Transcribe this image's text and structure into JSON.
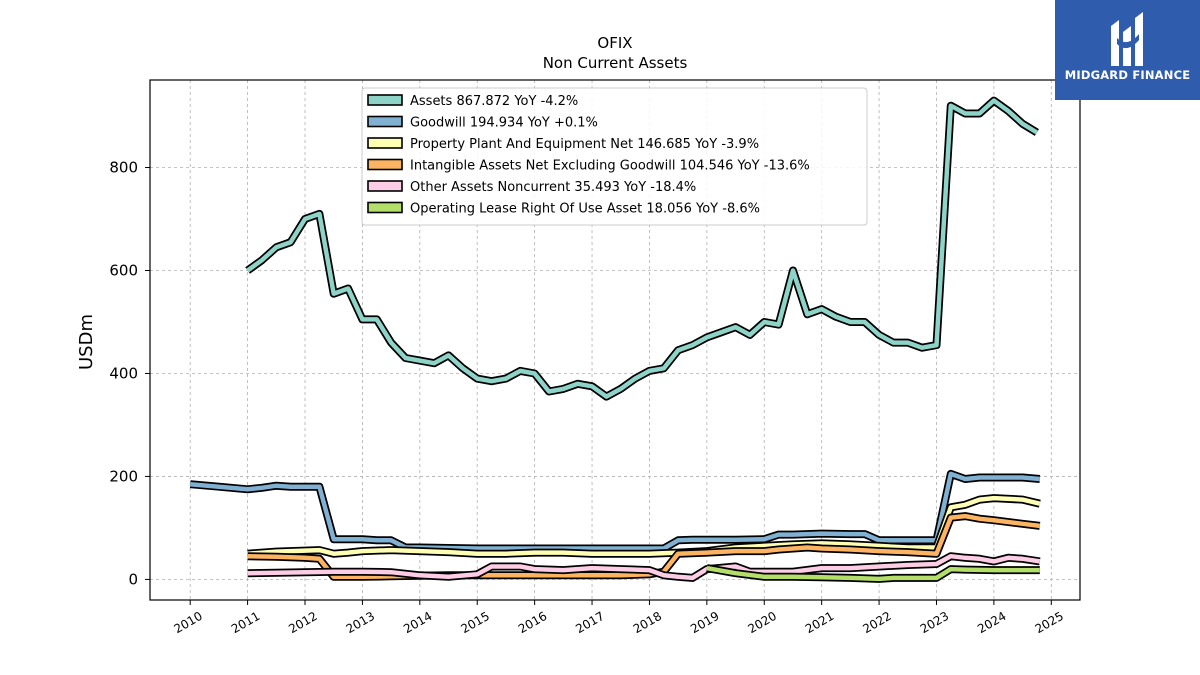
{
  "chart_data": {
    "type": "line",
    "title": "OFIX",
    "subtitle": "Non Current  Assets",
    "ylabel": "USDm",
    "xlabel": "",
    "xlim": [
      2009.3,
      2025.5
    ],
    "ylim": [
      -40,
      970
    ],
    "x_ticks": [
      "2010",
      "2011",
      "2012",
      "2013",
      "2014",
      "2015",
      "2016",
      "2017",
      "2018",
      "2019",
      "2020",
      "2021",
      "2022",
      "2023",
      "2024",
      "2025"
    ],
    "y_ticks": [
      0,
      200,
      400,
      600,
      800
    ],
    "grid": true,
    "legend_position": "top",
    "series": [
      {
        "name": "Assets",
        "legend": "Assets  867.872 YoY -4.2%",
        "color": "#8dd3c7",
        "points": [
          [
            2011.0,
            600
          ],
          [
            2011.25,
            620
          ],
          [
            2011.5,
            645
          ],
          [
            2011.75,
            655
          ],
          [
            2012.0,
            700
          ],
          [
            2012.25,
            710
          ],
          [
            2012.5,
            555
          ],
          [
            2012.75,
            565
          ],
          [
            2013.0,
            505
          ],
          [
            2013.25,
            505
          ],
          [
            2013.5,
            460
          ],
          [
            2013.75,
            430
          ],
          [
            2014.0,
            425
          ],
          [
            2014.25,
            420
          ],
          [
            2014.5,
            435
          ],
          [
            2014.75,
            410
          ],
          [
            2015.0,
            390
          ],
          [
            2015.25,
            385
          ],
          [
            2015.5,
            390
          ],
          [
            2015.75,
            405
          ],
          [
            2016.0,
            400
          ],
          [
            2016.25,
            365
          ],
          [
            2016.5,
            370
          ],
          [
            2016.75,
            380
          ],
          [
            2017.0,
            375
          ],
          [
            2017.25,
            355
          ],
          [
            2017.5,
            370
          ],
          [
            2017.75,
            390
          ],
          [
            2018.0,
            405
          ],
          [
            2018.25,
            410
          ],
          [
            2018.5,
            445
          ],
          [
            2018.75,
            455
          ],
          [
            2019.0,
            470
          ],
          [
            2019.25,
            480
          ],
          [
            2019.5,
            490
          ],
          [
            2019.75,
            475
          ],
          [
            2020.0,
            500
          ],
          [
            2020.25,
            495
          ],
          [
            2020.5,
            600
          ],
          [
            2020.75,
            515
          ],
          [
            2021.0,
            525
          ],
          [
            2021.25,
            510
          ],
          [
            2021.5,
            500
          ],
          [
            2021.75,
            500
          ],
          [
            2022.0,
            475
          ],
          [
            2022.25,
            460
          ],
          [
            2022.5,
            460
          ],
          [
            2022.75,
            450
          ],
          [
            2023.0,
            455
          ],
          [
            2023.25,
            920
          ],
          [
            2023.5,
            905
          ],
          [
            2023.75,
            905
          ],
          [
            2024.0,
            930
          ],
          [
            2024.25,
            910
          ],
          [
            2024.5,
            885
          ],
          [
            2024.75,
            868
          ]
        ]
      },
      {
        "name": "Goodwill",
        "legend": "Goodwill  194.934 YoY +0.1%",
        "color": "#80b1d3",
        "points": [
          [
            2010.0,
            185
          ],
          [
            2010.5,
            180
          ],
          [
            2011.0,
            175
          ],
          [
            2011.25,
            178
          ],
          [
            2011.5,
            182
          ],
          [
            2011.75,
            180
          ],
          [
            2012.0,
            180
          ],
          [
            2012.25,
            180
          ],
          [
            2012.5,
            78
          ],
          [
            2012.75,
            78
          ],
          [
            2013.0,
            78
          ],
          [
            2013.25,
            76
          ],
          [
            2013.5,
            76
          ],
          [
            2013.75,
            62
          ],
          [
            2014.0,
            62
          ],
          [
            2014.5,
            61
          ],
          [
            2015.0,
            60
          ],
          [
            2015.5,
            60
          ],
          [
            2016.0,
            60
          ],
          [
            2016.5,
            60
          ],
          [
            2017.0,
            60
          ],
          [
            2017.5,
            60
          ],
          [
            2018.0,
            60
          ],
          [
            2018.25,
            60
          ],
          [
            2018.5,
            76
          ],
          [
            2018.75,
            77
          ],
          [
            2019.0,
            77
          ],
          [
            2019.5,
            77
          ],
          [
            2020.0,
            78
          ],
          [
            2020.25,
            87
          ],
          [
            2020.5,
            87
          ],
          [
            2020.75,
            88
          ],
          [
            2021.0,
            89
          ],
          [
            2021.5,
            88
          ],
          [
            2021.75,
            88
          ],
          [
            2022.0,
            76
          ],
          [
            2022.5,
            76
          ],
          [
            2022.75,
            76
          ],
          [
            2023.0,
            76
          ],
          [
            2023.25,
            205
          ],
          [
            2023.5,
            195
          ],
          [
            2023.75,
            198
          ],
          [
            2024.0,
            198
          ],
          [
            2024.5,
            198
          ],
          [
            2024.8,
            195
          ]
        ]
      },
      {
        "name": "Property Plant And Equipment Net",
        "legend": "Property Plant And Equipment Net  146.685 YoY -3.9%",
        "color": "#ffffb3",
        "points": [
          [
            2011.0,
            50
          ],
          [
            2011.5,
            54
          ],
          [
            2012.0,
            56
          ],
          [
            2012.25,
            57
          ],
          [
            2012.5,
            50
          ],
          [
            2012.75,
            52
          ],
          [
            2013.0,
            55
          ],
          [
            2013.5,
            57
          ],
          [
            2014.0,
            55
          ],
          [
            2014.5,
            53
          ],
          [
            2015.0,
            50
          ],
          [
            2015.5,
            50
          ],
          [
            2016.0,
            52
          ],
          [
            2016.5,
            52
          ],
          [
            2017.0,
            50
          ],
          [
            2017.5,
            50
          ],
          [
            2018.0,
            50
          ],
          [
            2018.5,
            52
          ],
          [
            2019.0,
            55
          ],
          [
            2019.5,
            62
          ],
          [
            2020.0,
            65
          ],
          [
            2020.5,
            68
          ],
          [
            2021.0,
            70
          ],
          [
            2021.5,
            68
          ],
          [
            2022.0,
            65
          ],
          [
            2022.5,
            62
          ],
          [
            2023.0,
            62
          ],
          [
            2023.25,
            140
          ],
          [
            2023.5,
            145
          ],
          [
            2023.75,
            155
          ],
          [
            2024.0,
            158
          ],
          [
            2024.5,
            155
          ],
          [
            2024.8,
            147
          ]
        ]
      },
      {
        "name": "Intangible Assets Net Excluding Goodwill",
        "legend": "Intangible Assets Net Excluding Goodwill  104.546 YoY -13.6%",
        "color": "#fdb462",
        "points": [
          [
            2011.0,
            45
          ],
          [
            2011.5,
            44
          ],
          [
            2012.0,
            42
          ],
          [
            2012.25,
            40
          ],
          [
            2012.5,
            5
          ],
          [
            2013.0,
            5
          ],
          [
            2013.5,
            6
          ],
          [
            2014.0,
            7
          ],
          [
            2014.5,
            8
          ],
          [
            2015.0,
            8
          ],
          [
            2015.5,
            8
          ],
          [
            2016.0,
            8
          ],
          [
            2016.5,
            8
          ],
          [
            2017.0,
            8
          ],
          [
            2017.5,
            8
          ],
          [
            2018.0,
            10
          ],
          [
            2018.25,
            15
          ],
          [
            2018.5,
            50
          ],
          [
            2019.0,
            52
          ],
          [
            2019.5,
            55
          ],
          [
            2020.0,
            55
          ],
          [
            2020.25,
            58
          ],
          [
            2020.5,
            60
          ],
          [
            2020.75,
            62
          ],
          [
            2021.0,
            60
          ],
          [
            2021.5,
            58
          ],
          [
            2022.0,
            55
          ],
          [
            2022.5,
            53
          ],
          [
            2023.0,
            50
          ],
          [
            2023.25,
            120
          ],
          [
            2023.5,
            123
          ],
          [
            2023.75,
            118
          ],
          [
            2024.0,
            115
          ],
          [
            2024.5,
            108
          ],
          [
            2024.8,
            104
          ]
        ]
      },
      {
        "name": "Other Assets Noncurrent",
        "legend": "Other Assets Noncurrent  35.493 YoY -18.4%",
        "color": "#fccde5",
        "points": [
          [
            2011.0,
            12
          ],
          [
            2011.5,
            13
          ],
          [
            2012.0,
            14
          ],
          [
            2012.5,
            15
          ],
          [
            2013.0,
            15
          ],
          [
            2013.5,
            14
          ],
          [
            2014.0,
            8
          ],
          [
            2014.5,
            5
          ],
          [
            2015.0,
            10
          ],
          [
            2015.25,
            25
          ],
          [
            2015.75,
            25
          ],
          [
            2016.0,
            20
          ],
          [
            2016.5,
            18
          ],
          [
            2017.0,
            22
          ],
          [
            2017.5,
            20
          ],
          [
            2018.0,
            18
          ],
          [
            2018.25,
            8
          ],
          [
            2018.5,
            5
          ],
          [
            2018.75,
            3
          ],
          [
            2019.0,
            20
          ],
          [
            2019.5,
            25
          ],
          [
            2019.75,
            15
          ],
          [
            2020.0,
            15
          ],
          [
            2020.5,
            15
          ],
          [
            2021.0,
            22
          ],
          [
            2021.5,
            22
          ],
          [
            2022.0,
            25
          ],
          [
            2022.5,
            28
          ],
          [
            2023.0,
            30
          ],
          [
            2023.25,
            45
          ],
          [
            2023.5,
            42
          ],
          [
            2023.75,
            40
          ],
          [
            2024.0,
            35
          ],
          [
            2024.25,
            42
          ],
          [
            2024.5,
            40
          ],
          [
            2024.8,
            35
          ]
        ]
      },
      {
        "name": "Operating Lease Right Of Use Asset",
        "legend": "Operating Lease Right Of Use Asset  18.056 YoY -8.6%",
        "color": "#b3de69",
        "points": [
          [
            2019.0,
            22
          ],
          [
            2019.5,
            12
          ],
          [
            2020.0,
            5
          ],
          [
            2020.5,
            5
          ],
          [
            2021.0,
            4
          ],
          [
            2021.5,
            3
          ],
          [
            2022.0,
            1
          ],
          [
            2022.25,
            3
          ],
          [
            2022.5,
            3
          ],
          [
            2023.0,
            3
          ],
          [
            2023.25,
            20
          ],
          [
            2023.5,
            19
          ],
          [
            2024.0,
            18
          ],
          [
            2024.5,
            18
          ],
          [
            2024.8,
            18
          ]
        ]
      }
    ]
  },
  "logo": {
    "text": "MIDGARD FINANCE"
  }
}
